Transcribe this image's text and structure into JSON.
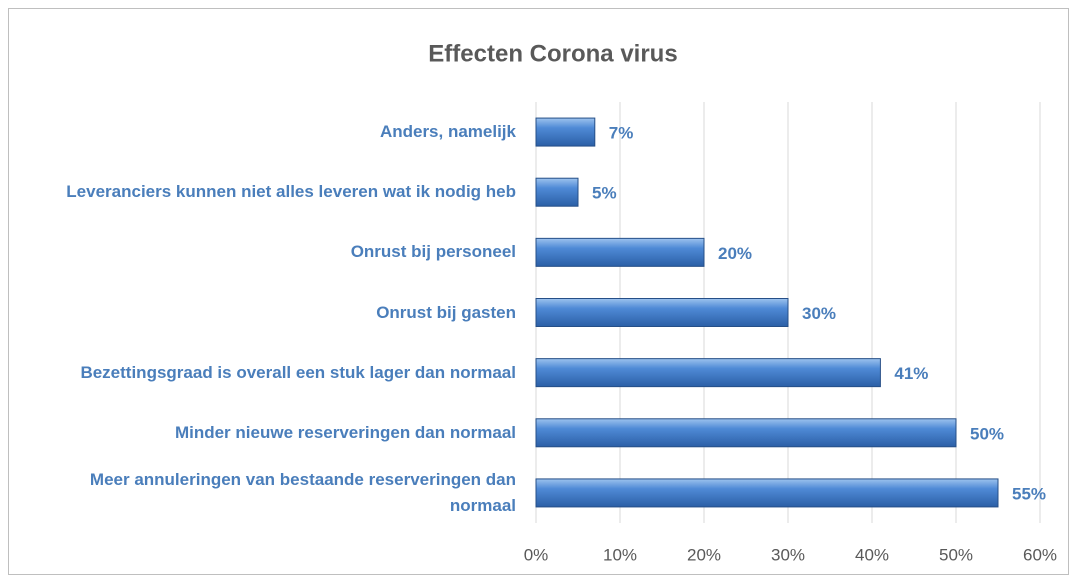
{
  "chart_data": {
    "type": "bar",
    "orientation": "horizontal",
    "title": "Effecten Corona virus",
    "categories": [
      "Anders, namelijk",
      "Leveranciers kunnen niet alles leveren wat ik nodig heb",
      "Onrust bij personeel",
      "Onrust bij gasten",
      "Bezettingsgraad is overall een stuk lager dan normaal",
      "Minder nieuwe reserveringen dan normaal",
      "Meer annuleringen van bestaande reserveringen dan normaal"
    ],
    "values": [
      7,
      5,
      20,
      30,
      41,
      50,
      55
    ],
    "value_labels": [
      "7%",
      "5%",
      "20%",
      "30%",
      "41%",
      "50%",
      "55%"
    ],
    "color": "#4f81bd",
    "xlim": [
      0,
      60
    ],
    "xticks": [
      {
        "value": 0,
        "label": "0%"
      },
      {
        "value": 10,
        "label": "10%"
      },
      {
        "value": 20,
        "label": "20%"
      },
      {
        "value": 30,
        "label": "30%"
      },
      {
        "value": 40,
        "label": "40%"
      },
      {
        "value": 50,
        "label": "50%"
      },
      {
        "value": 60,
        "label": "60%"
      }
    ],
    "grid": true
  }
}
